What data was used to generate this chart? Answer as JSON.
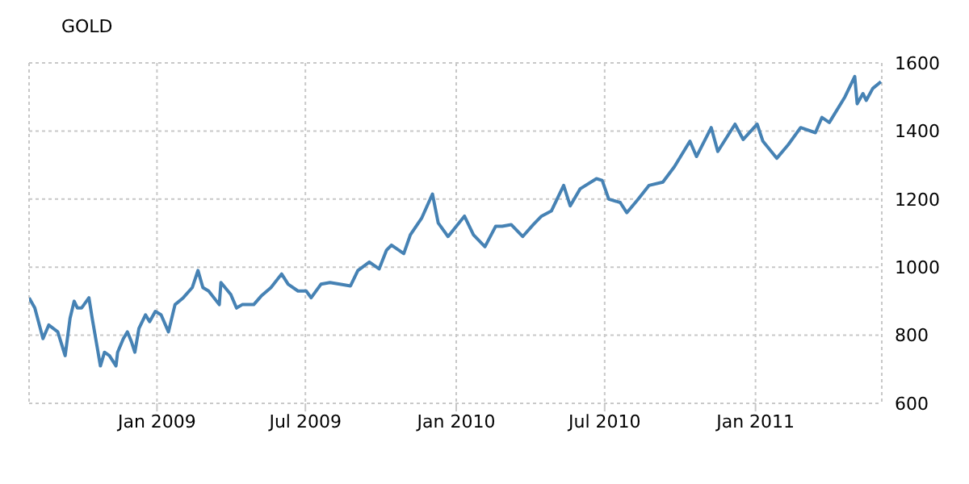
{
  "chart_data": {
    "type": "line",
    "title": "GOLD",
    "x": [
      "2008-07-29",
      "2008-08-05",
      "2008-08-15",
      "2008-08-22",
      "2008-09-02",
      "2008-09-11",
      "2008-09-17",
      "2008-09-22",
      "2008-09-26",
      "2008-10-01",
      "2008-10-10",
      "2008-10-14",
      "2008-10-24",
      "2008-10-29",
      "2008-11-04",
      "2008-11-12",
      "2008-11-14",
      "2008-11-21",
      "2008-11-26",
      "2008-12-01",
      "2008-12-05",
      "2008-12-10",
      "2008-12-18",
      "2008-12-23",
      "2008-12-30",
      "2009-01-06",
      "2009-01-15",
      "2009-01-23",
      "2009-02-02",
      "2009-02-13",
      "2009-02-20",
      "2009-02-26",
      "2009-03-05",
      "2009-03-18",
      "2009-03-20",
      "2009-04-01",
      "2009-04-08",
      "2009-04-15",
      "2009-04-29",
      "2009-05-08",
      "2009-05-20",
      "2009-06-02",
      "2009-06-10",
      "2009-06-22",
      "2009-07-02",
      "2009-07-08",
      "2009-07-20",
      "2009-07-31",
      "2009-08-12",
      "2009-08-25",
      "2009-09-03",
      "2009-09-17",
      "2009-09-29",
      "2009-10-08",
      "2009-10-14",
      "2009-10-29",
      "2009-11-06",
      "2009-11-20",
      "2009-12-03",
      "2009-12-10",
      "2009-12-22",
      "2010-01-11",
      "2010-01-22",
      "2010-02-05",
      "2010-02-18",
      "2010-02-26",
      "2010-03-09",
      "2010-03-23",
      "2010-04-05",
      "2010-04-15",
      "2010-04-27",
      "2010-05-12",
      "2010-05-20",
      "2010-06-01",
      "2010-06-21",
      "2010-06-28",
      "2010-07-06",
      "2010-07-20",
      "2010-07-28",
      "2010-08-11",
      "2010-08-24",
      "2010-09-10",
      "2010-09-24",
      "2010-10-13",
      "2010-10-21",
      "2010-11-08",
      "2010-11-16",
      "2010-12-07",
      "2010-12-17",
      "2011-01-03",
      "2011-01-10",
      "2011-01-27",
      "2011-02-10",
      "2011-02-25",
      "2011-03-15",
      "2011-03-23",
      "2011-04-01",
      "2011-04-20",
      "2011-05-02",
      "2011-05-05",
      "2011-05-12",
      "2011-05-16",
      "2011-05-24",
      "2011-06-03"
    ],
    "series": [
      {
        "color": "#4682b4",
        "values": [
          910,
          880,
          790,
          830,
          810,
          740,
          850,
          900,
          880,
          880,
          910,
          850,
          710,
          750,
          740,
          710,
          750,
          790,
          810,
          780,
          750,
          820,
          860,
          840,
          870,
          860,
          810,
          890,
          910,
          940,
          990,
          940,
          930,
          890,
          955,
          920,
          880,
          890,
          890,
          915,
          940,
          980,
          950,
          930,
          930,
          910,
          950,
          955,
          950,
          945,
          990,
          1015,
          995,
          1050,
          1065,
          1040,
          1095,
          1145,
          1215,
          1130,
          1090,
          1150,
          1095,
          1060,
          1120,
          1120,
          1125,
          1090,
          1125,
          1150,
          1165,
          1240,
          1180,
          1230,
          1260,
          1255,
          1200,
          1190,
          1160,
          1200,
          1240,
          1250,
          1295,
          1370,
          1325,
          1410,
          1340,
          1420,
          1375,
          1420,
          1370,
          1320,
          1360,
          1410,
          1395,
          1440,
          1425,
          1500,
          1560,
          1480,
          1510,
          1490,
          1525,
          1545
        ]
      }
    ],
    "xlim": [
      "2008-07-29",
      "2011-06-04"
    ],
    "xticks": [
      {
        "value": "2009-01-01",
        "label": "Jan 2009"
      },
      {
        "value": "2009-07-01",
        "label": "Jul 2009"
      },
      {
        "value": "2010-01-01",
        "label": "Jan 2010"
      },
      {
        "value": "2010-07-01",
        "label": "Jul 2010"
      },
      {
        "value": "2011-01-01",
        "label": "Jan 2011"
      }
    ],
    "ylim": [
      600,
      1600
    ],
    "yticks": [
      600,
      800,
      1000,
      1200,
      1400,
      1600
    ],
    "grid": true,
    "legend": false,
    "marker": "none",
    "line_style": "solid"
  }
}
